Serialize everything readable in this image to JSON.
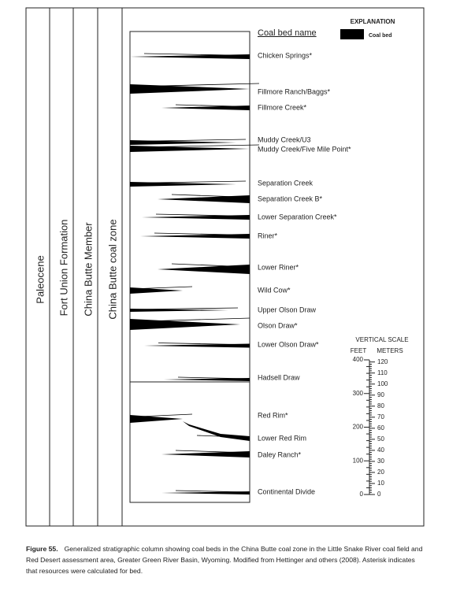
{
  "columns": [
    "Paleocene",
    "Fort Union Formation",
    "China Butte Member",
    "China Butte coal zone"
  ],
  "column_heading": "Coal bed name",
  "beds": [
    "Chicken Springs*",
    "Fillmore Ranch/Baggs*",
    "Fillmore Creek*",
    "Muddy Creek/U3",
    "Muddy Creek/Five Mile Point*",
    "Separation Creek",
    "Separation Creek B*",
    "Lower Separation Creek*",
    "Riner*",
    "Lower Riner*",
    "Wild Cow*",
    "Upper Olson Draw",
    "Olson Draw*",
    "Lower Olson Draw*",
    "Hadsell Draw",
    "Red Rim*",
    "Lower Red Rim",
    "Daley Ranch*",
    "Continental Divide"
  ],
  "explanation": {
    "title": "EXPLANATION",
    "item": "Coal bed"
  },
  "scale": {
    "title": "VERTICAL SCALE",
    "feet_label": "FEET",
    "meters_label": "METERS",
    "feet": [
      "0",
      "100",
      "200",
      "300",
      "400"
    ],
    "meters": [
      "0",
      "10",
      "20",
      "30",
      "40",
      "50",
      "60",
      "70",
      "80",
      "90",
      "100",
      "110",
      "120"
    ]
  },
  "caption": {
    "label": "Figure 55.",
    "text": "Generalized stratigraphic column showing coal beds in the China Butte coal zone in the Little Snake River coal field and Red Desert assessment area, Greater Green River Basin, Wyoming. Modified from Hettinger and others (2008). Asterisk indicates that resources were calculated for bed."
  }
}
